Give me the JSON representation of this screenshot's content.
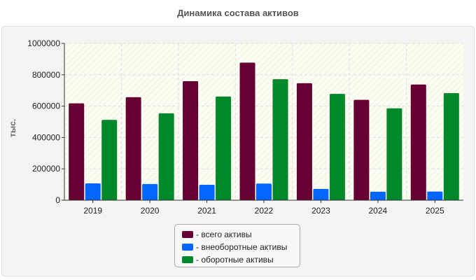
{
  "chart_data": {
    "type": "bar",
    "title": "Динамика состава активов",
    "ylabel": "тыс.",
    "xlabel": "",
    "categories": [
      "2019",
      "2020",
      "2021",
      "2022",
      "2023",
      "2024",
      "2025"
    ],
    "ylim": [
      0,
      1000000
    ],
    "yticks": [
      "0",
      "200000",
      "400000",
      "600000",
      "800000",
      "1000000"
    ],
    "series": [
      {
        "name": "- всего активы",
        "color": "#660033",
        "values": [
          618000,
          657000,
          759000,
          877000,
          746000,
          640000,
          738000
        ]
      },
      {
        "name": "- внеоборотные активы",
        "color": "#0066ff",
        "values": [
          107000,
          103000,
          98000,
          106000,
          72000,
          54000,
          55000
        ]
      },
      {
        "name": "- оборотные активы",
        "color": "#00882a",
        "values": [
          512000,
          554000,
          661000,
          772000,
          678000,
          586000,
          683000
        ]
      }
    ],
    "grid": true,
    "legend_position": "bottom"
  }
}
